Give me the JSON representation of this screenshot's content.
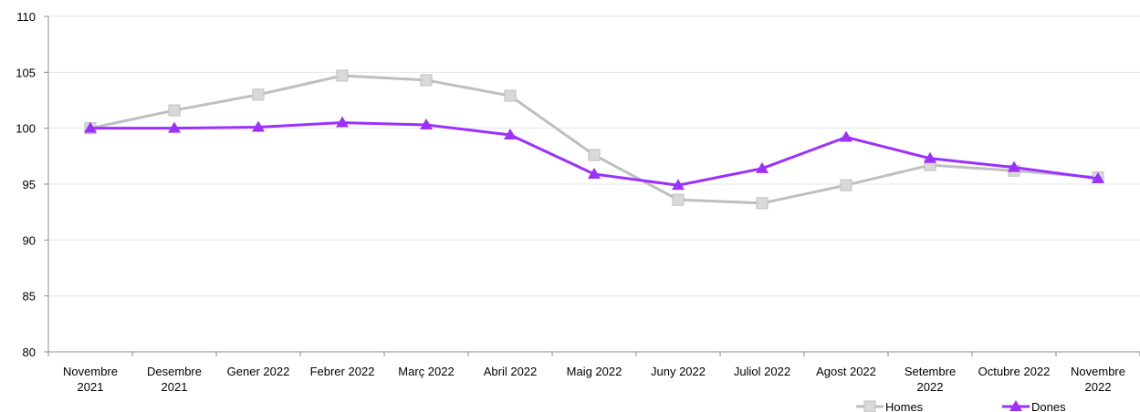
{
  "chart_data": {
    "type": "line",
    "categories": [
      [
        "Novembre",
        "2021"
      ],
      [
        "Desembre",
        "2021"
      ],
      [
        "Gener 2022"
      ],
      [
        "Febrer 2022"
      ],
      [
        "Març 2022"
      ],
      [
        "Abril 2022"
      ],
      [
        "Maig 2022"
      ],
      [
        "Juny 2022"
      ],
      [
        "Juliol 2022"
      ],
      [
        "Agost 2022"
      ],
      [
        "Setembre",
        "2022"
      ],
      [
        "Octubre 2022"
      ],
      [
        "Novembre",
        "2022"
      ]
    ],
    "series": [
      {
        "name": "Homes",
        "color": "#bfbfbf",
        "marker": "square",
        "values": [
          100.0,
          101.6,
          103.0,
          104.7,
          104.3,
          102.9,
          97.6,
          93.6,
          93.3,
          94.9,
          96.7,
          96.2,
          95.6
        ]
      },
      {
        "name": "Dones",
        "color": "#9b30ff",
        "marker": "triangle",
        "values": [
          100.0,
          100.0,
          100.1,
          100.5,
          100.3,
          99.4,
          95.9,
          94.9,
          96.4,
          99.2,
          97.3,
          96.5,
          95.5
        ]
      }
    ],
    "ylim": [
      80,
      110
    ],
    "yticks": [
      80,
      85,
      90,
      95,
      100,
      105,
      110
    ],
    "grid": true,
    "legend_position": "bottom-right"
  }
}
